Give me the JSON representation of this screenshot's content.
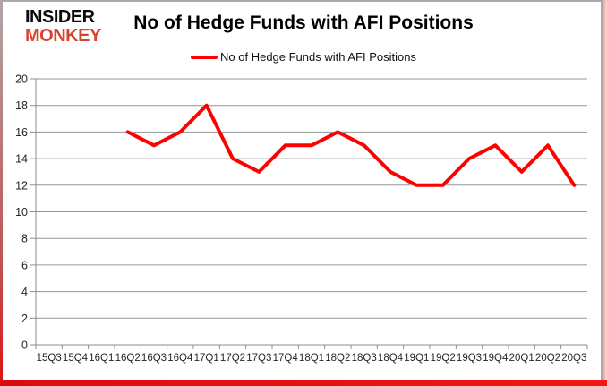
{
  "logo": {
    "line1": "INSIDER",
    "line2": "MONKEY"
  },
  "title": "No of Hedge Funds with AFI Positions",
  "legend": {
    "label": "No of Hedge Funds with AFI Positions",
    "swatch_color": "#ff0000"
  },
  "colors": {
    "series": "#ff0000",
    "gridline": "#969696",
    "axis": "#8c8c8c",
    "text": "#262626",
    "frame_bottom": "#e61010",
    "logo_black": "#0b0b0b",
    "logo_red": "#d8452f"
  },
  "chart_data": {
    "type": "line",
    "title": "No of Hedge Funds with AFI Positions",
    "categories": [
      "15Q3",
      "15Q4",
      "16Q1",
      "16Q2",
      "16Q3",
      "16Q4",
      "17Q1",
      "17Q2",
      "17Q3",
      "17Q4",
      "18Q1",
      "18Q2",
      "18Q3",
      "18Q4",
      "19Q1",
      "19Q2",
      "19Q3",
      "19Q4",
      "20Q1",
      "20Q2",
      "20Q3"
    ],
    "series": [
      {
        "name": "No of Hedge Funds with AFI Positions",
        "color": "#ff0000",
        "values": [
          null,
          null,
          null,
          16,
          15,
          16,
          18,
          14,
          13,
          15,
          15,
          16,
          15,
          13,
          12,
          12,
          14,
          15,
          13,
          15,
          12
        ]
      }
    ],
    "xlabel": "",
    "ylabel": "",
    "ylim": [
      0,
      20
    ],
    "ytick_step": 2,
    "grid": true,
    "legend_position": "top"
  }
}
